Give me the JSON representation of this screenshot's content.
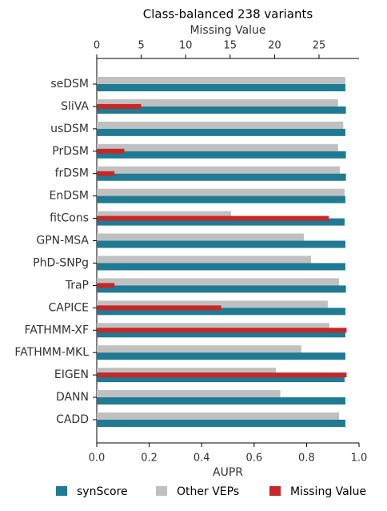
{
  "chart_data": {
    "type": "bar",
    "orientation": "horizontal",
    "title": "Class-balanced 238 variants",
    "xlabel": "AUPR",
    "x2label": "Missing Value",
    "categories": [
      "seDSM",
      "SliVA",
      "usDSM",
      "PrDSM",
      "frDSM",
      "EnDSM",
      "fitCons",
      "GPN-MSA",
      "PhD-SNPg",
      "TraP",
      "CAPICE",
      "FATHMM-XF",
      "FATHMM-MKL",
      "EIGEN",
      "DANN",
      "CADD"
    ],
    "series": [
      {
        "name": "synScore",
        "color": "#1f7a94",
        "values": [
          0.948,
          0.95,
          0.948,
          0.95,
          0.95,
          0.948,
          0.945,
          0.948,
          0.948,
          0.95,
          0.948,
          0.948,
          0.948,
          0.945,
          0.948,
          0.948
        ]
      },
      {
        "name": "Other VEPs",
        "color": "#c0c0c0",
        "values": [
          0.948,
          0.92,
          0.94,
          0.92,
          0.927,
          0.945,
          0.512,
          0.79,
          0.817,
          0.924,
          0.881,
          0.887,
          0.78,
          0.683,
          0.7,
          0.924
        ]
      },
      {
        "name": "Missing Value",
        "color": "#c62828",
        "axis": "x2",
        "values": [
          null,
          5.0,
          null,
          3.1,
          2.0,
          null,
          26.1,
          null,
          null,
          2.0,
          14.0,
          28.1,
          null,
          28.1,
          null,
          null
        ]
      }
    ],
    "xlim": [
      0,
      1
    ],
    "xticks": [
      {
        "value": 0,
        "label": "0.0"
      },
      0.2,
      0.4,
      0.6,
      0.8,
      {
        "value": 1,
        "label": "1.0"
      }
    ],
    "x2lim": [
      0,
      29.5
    ],
    "x2ticks": [
      0,
      5,
      10,
      15,
      20,
      25
    ],
    "legend": "bottom"
  }
}
